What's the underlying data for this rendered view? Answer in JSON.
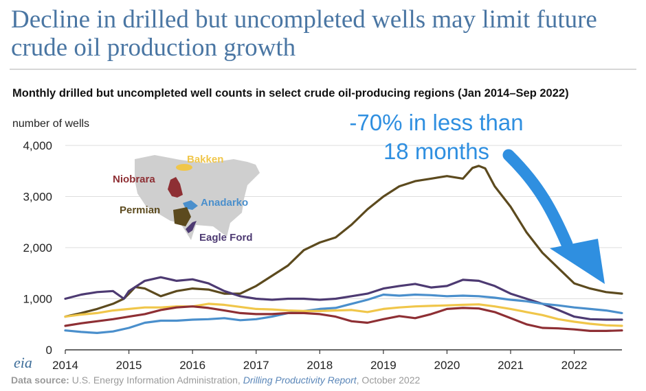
{
  "headline": "Decline in drilled but uncompleted wells may limit future crude oil production growth",
  "logo_text": "eia",
  "source": {
    "label": "Data source:",
    "agency": " U.S. Energy Information Administration, ",
    "report": "Drilling Productivity Report",
    "date": ", October 2022"
  },
  "colors": {
    "Permian": "#5c4a1e",
    "Anadarko": "#4a8fcc",
    "Bakken": "#f0c64a",
    "Niobrara": "#8e2f34",
    "Eagle Ford": "#4d3a72",
    "callout": "#2f8fe0",
    "grid": "#dddddd",
    "map": "#cfcfcf"
  },
  "chart_data": {
    "type": "line",
    "title": "Monthly drilled but uncompleted well counts in select crude oil-producing regions (Jan 2014–Sep 2022)",
    "ylabel": "number of wells",
    "ylim": [
      0,
      4000
    ],
    "yticks": [
      0,
      1000,
      2000,
      3000,
      4000
    ],
    "ytick_labels": [
      "0",
      "1,000",
      "2,000",
      "3,000",
      "4,000"
    ],
    "xlim": [
      2014,
      2022.75
    ],
    "xticks": [
      2014,
      2015,
      2016,
      2017,
      2018,
      2019,
      2020,
      2021,
      2022
    ],
    "grid": true,
    "annotation": {
      "text_line1": "-70% in less than",
      "text_line2": "18 months"
    },
    "map_labels": [
      "Bakken",
      "Niobrara",
      "Anadarko",
      "Permian",
      "Eagle Ford"
    ],
    "series": [
      {
        "name": "Permian",
        "points": [
          [
            2014,
            650
          ],
          [
            2014.25,
            720
          ],
          [
            2014.5,
            800
          ],
          [
            2014.75,
            900
          ],
          [
            2014.92,
            1000
          ],
          [
            2015,
            1100
          ],
          [
            2015.1,
            1230
          ],
          [
            2015.25,
            1200
          ],
          [
            2015.5,
            1050
          ],
          [
            2015.75,
            1150
          ],
          [
            2016,
            1200
          ],
          [
            2016.25,
            1180
          ],
          [
            2016.5,
            1100
          ],
          [
            2016.75,
            1100
          ],
          [
            2017,
            1250
          ],
          [
            2017.25,
            1450
          ],
          [
            2017.5,
            1650
          ],
          [
            2017.75,
            1950
          ],
          [
            2018,
            2100
          ],
          [
            2018.25,
            2200
          ],
          [
            2018.5,
            2450
          ],
          [
            2018.75,
            2750
          ],
          [
            2019,
            3000
          ],
          [
            2019.25,
            3200
          ],
          [
            2019.5,
            3300
          ],
          [
            2019.75,
            3350
          ],
          [
            2020,
            3400
          ],
          [
            2020.25,
            3350
          ],
          [
            2020.4,
            3560
          ],
          [
            2020.5,
            3600
          ],
          [
            2020.6,
            3550
          ],
          [
            2020.75,
            3200
          ],
          [
            2021,
            2800
          ],
          [
            2021.25,
            2300
          ],
          [
            2021.5,
            1900
          ],
          [
            2021.75,
            1600
          ],
          [
            2022,
            1300
          ],
          [
            2022.25,
            1200
          ],
          [
            2022.5,
            1130
          ],
          [
            2022.75,
            1100
          ]
        ]
      },
      {
        "name": "Eagle Ford",
        "points": [
          [
            2014,
            1000
          ],
          [
            2014.25,
            1080
          ],
          [
            2014.5,
            1130
          ],
          [
            2014.75,
            1150
          ],
          [
            2014.92,
            1000
          ],
          [
            2015,
            1150
          ],
          [
            2015.25,
            1350
          ],
          [
            2015.5,
            1420
          ],
          [
            2015.75,
            1350
          ],
          [
            2016,
            1380
          ],
          [
            2016.25,
            1300
          ],
          [
            2016.5,
            1150
          ],
          [
            2016.75,
            1050
          ],
          [
            2017,
            1000
          ],
          [
            2017.25,
            980
          ],
          [
            2017.5,
            1000
          ],
          [
            2017.75,
            1000
          ],
          [
            2018,
            980
          ],
          [
            2018.25,
            1000
          ],
          [
            2018.5,
            1050
          ],
          [
            2018.75,
            1100
          ],
          [
            2019,
            1200
          ],
          [
            2019.25,
            1250
          ],
          [
            2019.5,
            1290
          ],
          [
            2019.75,
            1220
          ],
          [
            2020,
            1250
          ],
          [
            2020.25,
            1370
          ],
          [
            2020.5,
            1350
          ],
          [
            2020.75,
            1250
          ],
          [
            2021,
            1100
          ],
          [
            2021.25,
            1000
          ],
          [
            2021.5,
            900
          ],
          [
            2021.75,
            780
          ],
          [
            2022,
            650
          ],
          [
            2022.25,
            600
          ],
          [
            2022.5,
            590
          ],
          [
            2022.75,
            590
          ]
        ]
      },
      {
        "name": "Anadarko",
        "points": [
          [
            2014,
            380
          ],
          [
            2014.25,
            350
          ],
          [
            2014.5,
            330
          ],
          [
            2014.75,
            360
          ],
          [
            2015,
            430
          ],
          [
            2015.25,
            530
          ],
          [
            2015.5,
            570
          ],
          [
            2015.75,
            570
          ],
          [
            2016,
            590
          ],
          [
            2016.25,
            600
          ],
          [
            2016.5,
            620
          ],
          [
            2016.75,
            580
          ],
          [
            2017,
            600
          ],
          [
            2017.25,
            650
          ],
          [
            2017.5,
            720
          ],
          [
            2017.75,
            760
          ],
          [
            2018,
            800
          ],
          [
            2018.25,
            820
          ],
          [
            2018.5,
            900
          ],
          [
            2018.75,
            980
          ],
          [
            2019,
            1080
          ],
          [
            2019.25,
            1060
          ],
          [
            2019.5,
            1080
          ],
          [
            2019.75,
            1070
          ],
          [
            2020,
            1050
          ],
          [
            2020.25,
            1060
          ],
          [
            2020.5,
            1050
          ],
          [
            2020.75,
            1020
          ],
          [
            2021,
            980
          ],
          [
            2021.25,
            950
          ],
          [
            2021.5,
            900
          ],
          [
            2021.75,
            870
          ],
          [
            2022,
            830
          ],
          [
            2022.25,
            800
          ],
          [
            2022.5,
            770
          ],
          [
            2022.75,
            720
          ]
        ]
      },
      {
        "name": "Bakken",
        "points": [
          [
            2014,
            650
          ],
          [
            2014.25,
            690
          ],
          [
            2014.5,
            720
          ],
          [
            2014.75,
            770
          ],
          [
            2015,
            800
          ],
          [
            2015.25,
            830
          ],
          [
            2015.5,
            830
          ],
          [
            2015.75,
            850
          ],
          [
            2016,
            850
          ],
          [
            2016.25,
            900
          ],
          [
            2016.5,
            880
          ],
          [
            2016.75,
            840
          ],
          [
            2017,
            800
          ],
          [
            2017.25,
            790
          ],
          [
            2017.5,
            770
          ],
          [
            2017.75,
            760
          ],
          [
            2018,
            760
          ],
          [
            2018.25,
            770
          ],
          [
            2018.5,
            780
          ],
          [
            2018.75,
            740
          ],
          [
            2019,
            800
          ],
          [
            2019.25,
            830
          ],
          [
            2019.5,
            850
          ],
          [
            2019.75,
            860
          ],
          [
            2020,
            870
          ],
          [
            2020.25,
            880
          ],
          [
            2020.5,
            890
          ],
          [
            2020.75,
            850
          ],
          [
            2021,
            800
          ],
          [
            2021.25,
            740
          ],
          [
            2021.5,
            680
          ],
          [
            2021.75,
            600
          ],
          [
            2022,
            550
          ],
          [
            2022.25,
            510
          ],
          [
            2022.5,
            480
          ],
          [
            2022.75,
            470
          ]
        ]
      },
      {
        "name": "Niobrara",
        "points": [
          [
            2014,
            470
          ],
          [
            2014.25,
            520
          ],
          [
            2014.5,
            560
          ],
          [
            2014.75,
            600
          ],
          [
            2015,
            650
          ],
          [
            2015.25,
            700
          ],
          [
            2015.5,
            780
          ],
          [
            2015.75,
            830
          ],
          [
            2016,
            850
          ],
          [
            2016.25,
            820
          ],
          [
            2016.5,
            770
          ],
          [
            2016.75,
            720
          ],
          [
            2017,
            700
          ],
          [
            2017.25,
            700
          ],
          [
            2017.5,
            720
          ],
          [
            2017.75,
            720
          ],
          [
            2018,
            700
          ],
          [
            2018.25,
            650
          ],
          [
            2018.5,
            560
          ],
          [
            2018.75,
            530
          ],
          [
            2019,
            600
          ],
          [
            2019.25,
            660
          ],
          [
            2019.5,
            620
          ],
          [
            2019.75,
            700
          ],
          [
            2020,
            800
          ],
          [
            2020.25,
            820
          ],
          [
            2020.5,
            810
          ],
          [
            2020.75,
            740
          ],
          [
            2021,
            620
          ],
          [
            2021.25,
            500
          ],
          [
            2021.5,
            430
          ],
          [
            2021.75,
            420
          ],
          [
            2022,
            400
          ],
          [
            2022.25,
            370
          ],
          [
            2022.5,
            370
          ],
          [
            2022.75,
            380
          ]
        ]
      }
    ]
  }
}
